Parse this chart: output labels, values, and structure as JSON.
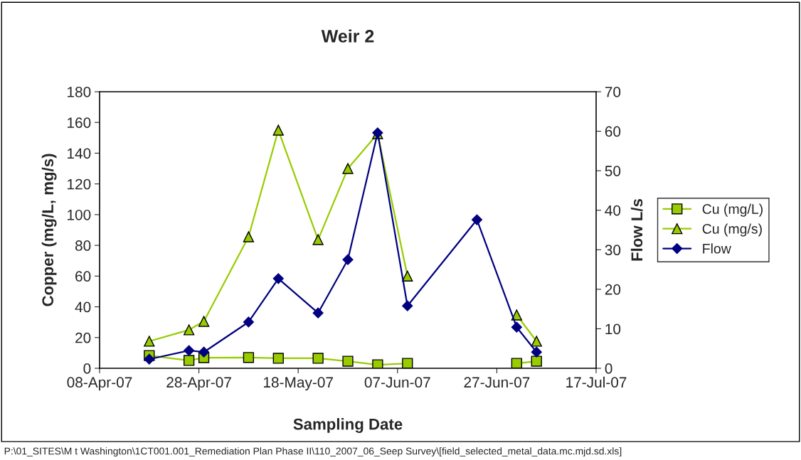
{
  "chart_data": {
    "type": "line",
    "title": "Weir 2",
    "xlabel": "Sampling Date",
    "ylabel": "Copper (mg/L, mg/s)",
    "y2label": "Flow L/s",
    "x": [
      "2007-04-18",
      "2007-04-26",
      "2007-04-29",
      "2007-05-08",
      "2007-05-14",
      "2007-05-22",
      "2007-05-28",
      "2007-06-03",
      "2007-06-09",
      "2007-06-23",
      "2007-07-01",
      "2007-07-05"
    ],
    "series": [
      {
        "name": "Cu (mg/L)",
        "color": "#99cc00",
        "marker": "square",
        "values": [
          8.3,
          5.1,
          6.9,
          7,
          6.5,
          6.5,
          4.6,
          2.3,
          3.2,
          null,
          3.2,
          4.6
        ]
      },
      {
        "name": "Cu (mg/s)",
        "color": "#99cc00",
        "marker": "triangle",
        "values": [
          17.6,
          25,
          30.5,
          85.6,
          155,
          83.7,
          130,
          152.7,
          60,
          null,
          34.7,
          17.6
        ]
      },
      {
        "name": "Flow",
        "color": "#000080",
        "marker": "diamond",
        "axis": "y2",
        "values": [
          2.3,
          4.5,
          4.1,
          11.7,
          22.7,
          14,
          27.5,
          59.6,
          15.8,
          37.6,
          10.4,
          4.1
        ]
      }
    ],
    "xlim": [
      "2007-04-08",
      "2007-07-17"
    ],
    "xticks": [
      {
        "value": "2007-04-08",
        "label": "08-Apr-07"
      },
      {
        "value": "2007-04-28",
        "label": "28-Apr-07"
      },
      {
        "value": "2007-05-18",
        "label": "18-May-07"
      },
      {
        "value": "2007-06-07",
        "label": "07-Jun-07"
      },
      {
        "value": "2007-06-27",
        "label": "27-Jun-07"
      },
      {
        "value": "2007-07-17",
        "label": "17-Jul-07"
      }
    ],
    "ylim": [
      0,
      180
    ],
    "yticks": [
      0,
      20,
      40,
      60,
      80,
      100,
      120,
      140,
      160,
      180
    ],
    "y2lim": [
      0,
      70
    ],
    "y2ticks": [
      0,
      10,
      20,
      30,
      40,
      50,
      60,
      70
    ],
    "legend": "right",
    "grid": false,
    "annotations": [
      "P:\\01_SITES\\M t Washington\\1CT001.001_Remediation Plan Phase II\\110_2007_06_Seep Survey\\[field_selected_metal_data.mc.mjd.sd.xls]"
    ]
  }
}
